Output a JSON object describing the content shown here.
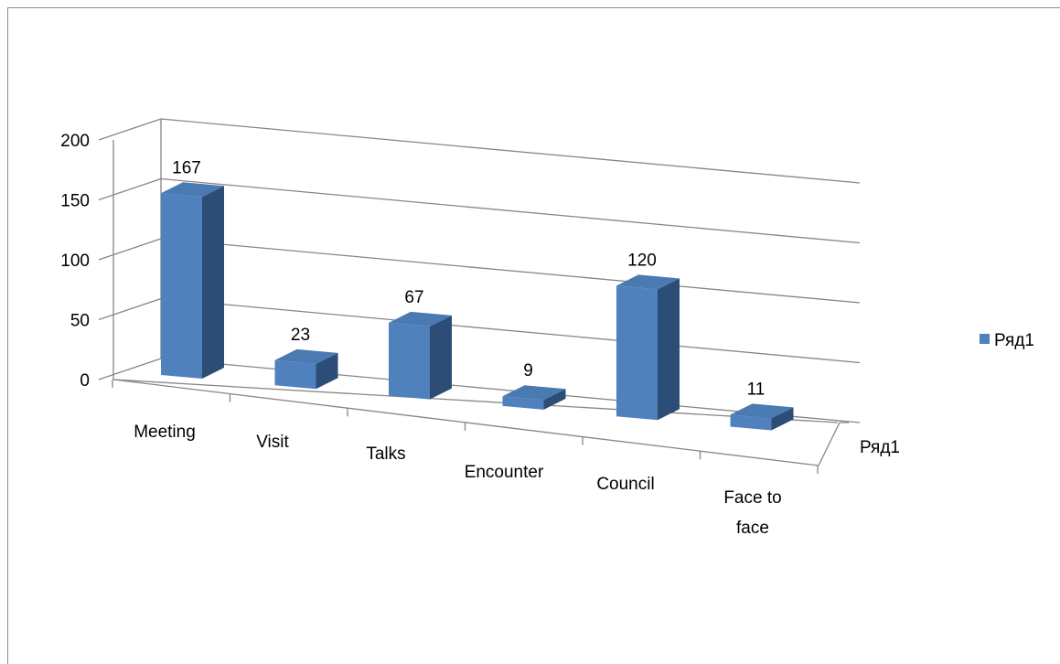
{
  "chart_data": {
    "type": "bar",
    "style": "3d-column",
    "categories": [
      "Meeting",
      "Visit",
      "Talks",
      "Encounter",
      "Council",
      "Face to face"
    ],
    "category_lines": [
      [
        "Meeting"
      ],
      [
        "Visit"
      ],
      [
        "Talks"
      ],
      [
        "Encounter"
      ],
      [
        "Council"
      ],
      [
        "Face to",
        "face"
      ]
    ],
    "series": [
      {
        "name": "Ряд1",
        "values": [
          167,
          23,
          67,
          9,
          120,
          11
        ],
        "color": "#4f81bd"
      }
    ],
    "data_labels": [
      "167",
      "23",
      "67",
      "9",
      "120",
      "11"
    ],
    "y_ticks": [
      "0",
      "50",
      "100",
      "150",
      "200"
    ],
    "ylim": [
      0,
      200
    ],
    "grid": true,
    "legend_position": "right",
    "depth_axis_label": "Ряд1",
    "colors": {
      "bar_front": "#4f81bd",
      "bar_side": "#2c4d75",
      "bar_top": "#4a7ab2",
      "grid": "#868686"
    }
  }
}
